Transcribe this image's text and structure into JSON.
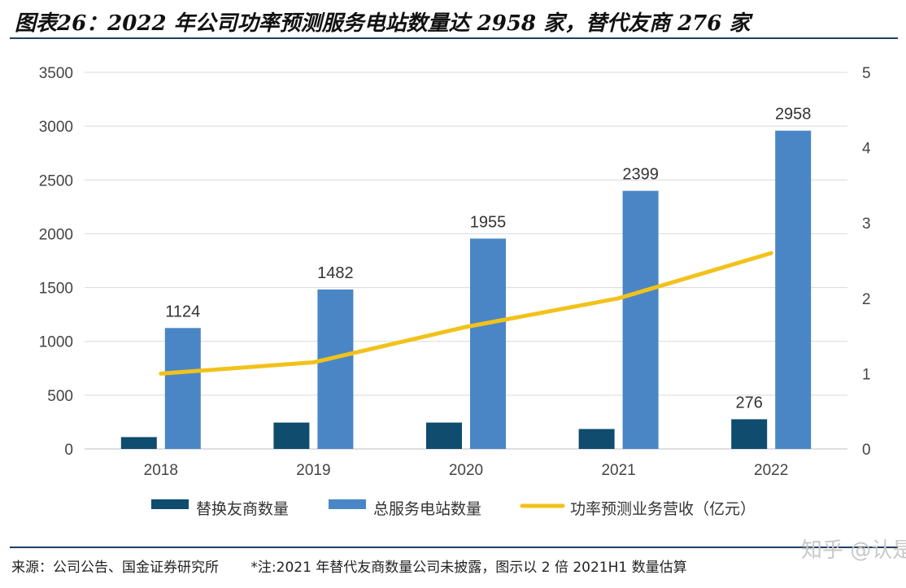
{
  "title": "图表26：2022 年公司功率预测服务电站数量达 2958 家，替代友商 276 家",
  "footer": {
    "source": "来源：公司公告、国金证券研究所",
    "note": "*注:2021 年替代友商数量公司未披露，图示以 2 倍 2021H1 数量估算"
  },
  "watermark": "知乎 @认是",
  "colors": {
    "replace": "#0f4c6e",
    "total": "#4a86c5",
    "line": "#f2c21b",
    "grid": "#d9d9d9",
    "rule": "#1f3f64"
  },
  "chart_data": {
    "type": "bar",
    "categories": [
      "2018",
      "2019",
      "2020",
      "2021",
      "2022"
    ],
    "series": [
      {
        "name": "替换友商数量",
        "type": "bar",
        "axis": "left",
        "values": [
          110,
          245,
          245,
          185,
          276
        ]
      },
      {
        "name": "总服务电站数量",
        "type": "bar",
        "axis": "left",
        "values": [
          1124,
          1482,
          1955,
          2399,
          2958
        ]
      },
      {
        "name": "功率预测业务营收（亿元）",
        "type": "line",
        "axis": "right",
        "values": [
          1.0,
          1.15,
          1.62,
          2.0,
          2.6
        ]
      }
    ],
    "data_labels": {
      "total": [
        "1124",
        "1482",
        "1955",
        "2399",
        "2958"
      ],
      "replace_2022": "276"
    },
    "yleft": {
      "min": 0,
      "max": 3500,
      "ticks": [
        "0",
        "500",
        "1000",
        "1500",
        "2000",
        "2500",
        "3000",
        "3500"
      ]
    },
    "yright": {
      "min": 0,
      "max": 5,
      "ticks": [
        "0",
        "1",
        "2",
        "3",
        "4",
        "5"
      ]
    },
    "grid": true,
    "legend": "bottom"
  }
}
